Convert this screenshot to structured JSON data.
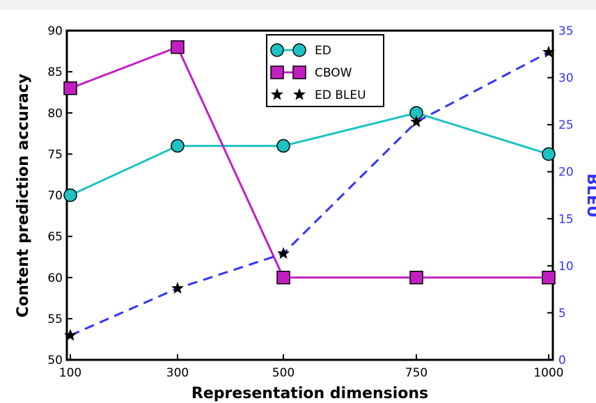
{
  "chart_data": {
    "type": "line",
    "xlabel": "Representation dimensions",
    "ylabel": "Content prediction accuracy",
    "y2label": "BLEU",
    "categories": [
      "100",
      "300",
      "500",
      "750",
      "1000"
    ],
    "ylim": [
      50,
      90
    ],
    "yticks": [
      50,
      55,
      60,
      65,
      70,
      75,
      80,
      85,
      90
    ],
    "y2lim": [
      0,
      35
    ],
    "y2ticks": [
      0,
      5,
      10,
      15,
      20,
      25,
      30,
      35
    ],
    "legend_position": "top-center",
    "grid": false,
    "series": [
      {
        "name": "ED",
        "axis": "left",
        "values": [
          70,
          76,
          76,
          80,
          75
        ],
        "color": "#1fc2c2",
        "marker": "circle",
        "line": "solid"
      },
      {
        "name": "CBOW",
        "axis": "left",
        "values": [
          83,
          88,
          60,
          60,
          60
        ],
        "color": "#c21fc2",
        "marker": "square",
        "line": "solid"
      },
      {
        "name": "ED BLEU",
        "axis": "right",
        "values": [
          2.6,
          7.6,
          11.3,
          25.3,
          32.7
        ],
        "color": "#3333ff",
        "marker": "star",
        "line": "dashed"
      }
    ],
    "right_axis_color": "#3333ff"
  }
}
